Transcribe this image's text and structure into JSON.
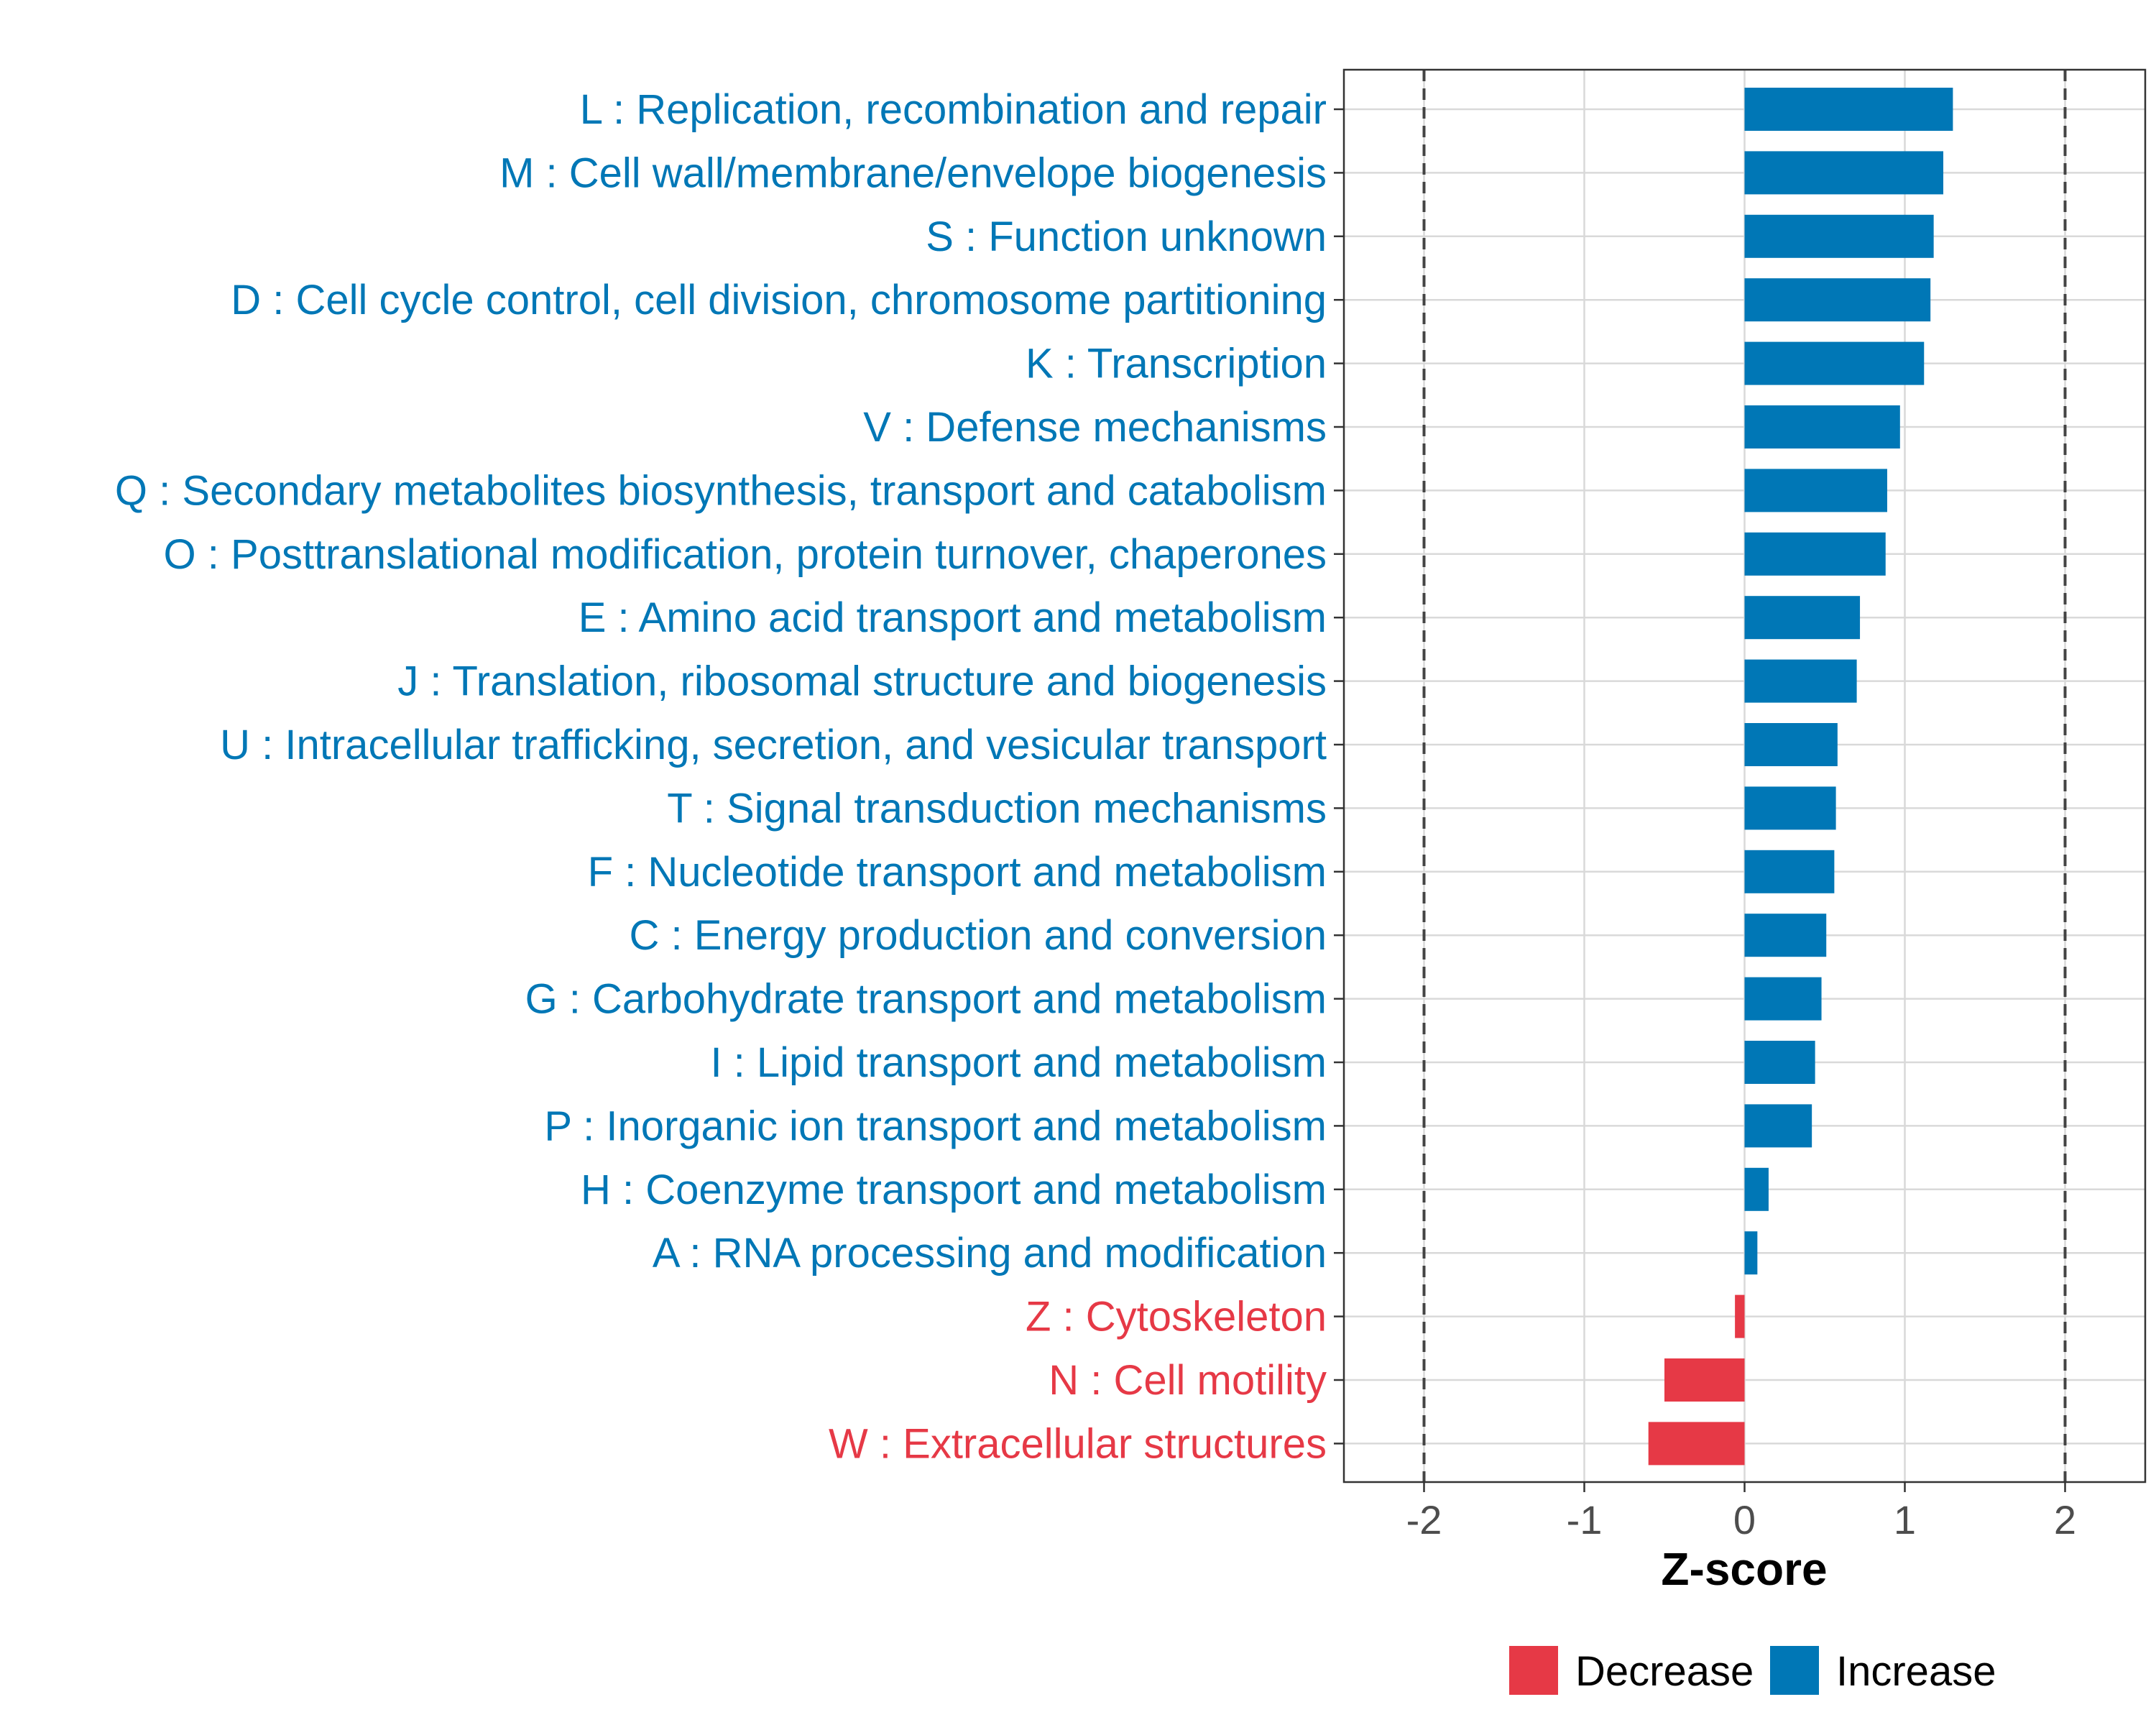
{
  "chart_data": {
    "type": "bar",
    "orientation": "horizontal",
    "xlabel": "Z-score",
    "xlim": [
      -2.5,
      2.5
    ],
    "xticks": [
      -2,
      -1,
      0,
      1,
      2
    ],
    "xtick_labels": [
      "-2",
      "-1",
      "0",
      "1",
      "2"
    ],
    "reference_lines": [
      -2,
      2
    ],
    "grid": true,
    "legend_position": "bottom",
    "legend": [
      {
        "name": "Decrease",
        "color": "#E63946"
      },
      {
        "name": "Increase",
        "color": "#0077B6"
      }
    ],
    "categories": [
      "L : Replication, recombination and repair",
      "M : Cell wall/membrane/envelope biogenesis",
      "S : Function unknown",
      "D : Cell cycle control, cell division, chromosome partitioning",
      "K : Transcription",
      "V : Defense mechanisms",
      "Q : Secondary metabolites biosynthesis, transport and catabolism",
      "O : Posttranslational modification, protein turnover, chaperones",
      "E : Amino acid transport and metabolism",
      "J : Translation, ribosomal structure and biogenesis",
      "U : Intracellular trafficking, secretion, and vesicular transport",
      "T : Signal transduction mechanisms",
      "F : Nucleotide transport and metabolism",
      "C : Energy production and conversion",
      "G : Carbohydrate transport and metabolism",
      "I : Lipid transport and metabolism",
      "P : Inorganic ion transport and metabolism",
      "H : Coenzyme transport and metabolism",
      "A : RNA processing and modification",
      "Z : Cytoskeleton",
      "N : Cell motility",
      "W : Extracellular structures"
    ],
    "values": [
      1.3,
      1.24,
      1.18,
      1.16,
      1.12,
      0.97,
      0.89,
      0.88,
      0.72,
      0.7,
      0.58,
      0.57,
      0.56,
      0.51,
      0.48,
      0.44,
      0.42,
      0.15,
      0.08,
      -0.06,
      -0.5,
      -0.6
    ],
    "colors": {
      "increase": "#0077B6",
      "decrease": "#E63946",
      "text_axis": "#4D4D4D",
      "grid": "#D9D9D9"
    }
  }
}
